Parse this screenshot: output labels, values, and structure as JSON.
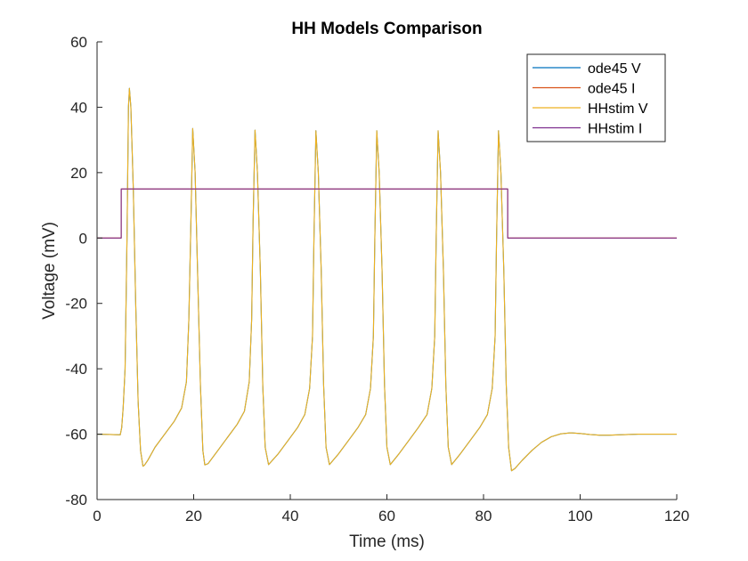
{
  "chart_data": {
    "type": "line",
    "title": "HH Models Comparison",
    "xlabel": "Time (ms)",
    "ylabel": "Voltage (mV)",
    "xlim": [
      0,
      120
    ],
    "ylim": [
      -80,
      60
    ],
    "xticks": [
      0,
      20,
      40,
      60,
      80,
      100,
      120
    ],
    "yticks": [
      -80,
      -60,
      -40,
      -20,
      0,
      20,
      40,
      60
    ],
    "grid": false,
    "legend_position": "top-right",
    "series": [
      {
        "name": "ode45 V",
        "color": "#0072BD",
        "x": [
          0,
          4.8,
          5.1,
          5.4,
          5.8,
          6.2,
          6.5,
          6.7,
          7.0,
          7.5,
          8.0,
          8.5,
          9.0,
          9.5,
          9.8,
          10.5,
          12,
          14,
          16,
          17.5,
          18.5,
          19.0,
          19.5,
          19.8,
          20.3,
          20.8,
          21.4,
          21.9,
          22.3,
          23,
          25,
          27,
          29,
          30.5,
          31.5,
          32.0,
          32.3,
          32.7,
          33.2,
          33.8,
          34.3,
          34.8,
          35.5,
          37.5,
          39.5,
          41.5,
          43,
          44,
          44.6,
          44.9,
          45.3,
          45.8,
          46.4,
          46.9,
          47.4,
          48.1,
          50,
          52,
          54,
          55.6,
          56.6,
          57.2,
          57.5,
          57.9,
          58.4,
          59.0,
          59.5,
          60.0,
          60.7,
          62.5,
          64.5,
          66.5,
          68.3,
          69.3,
          69.9,
          70.2,
          70.6,
          71.1,
          71.7,
          72.2,
          72.7,
          73.4,
          75.2,
          77.2,
          79.2,
          80.8,
          81.8,
          82.4,
          82.7,
          83.1,
          83.6,
          84.2,
          84.7,
          85.2,
          85.8,
          86.5,
          88,
          90,
          92,
          94,
          96,
          98,
          100,
          102,
          104,
          106,
          108,
          110,
          112,
          115,
          120
        ],
        "y": [
          -60,
          -60.2,
          -58,
          -52,
          -40,
          0,
          40,
          45.8,
          40,
          15,
          -20,
          -50,
          -65,
          -69.8,
          -69.5,
          -68,
          -64,
          -60,
          -56,
          -52,
          -44,
          -25,
          10,
          33.5,
          20,
          -10,
          -45,
          -65,
          -69.4,
          -69,
          -65,
          -61,
          -57,
          -53,
          -44,
          -25,
          5,
          33,
          20,
          -10,
          -45,
          -64,
          -69.3,
          -66,
          -62,
          -58,
          -54,
          -46,
          -30,
          0,
          32.8,
          20,
          -10,
          -45,
          -64,
          -69.3,
          -66,
          -62,
          -58,
          -54,
          -46,
          -30,
          0,
          32.8,
          20,
          -10,
          -45,
          -64,
          -69.3,
          -66,
          -62,
          -58,
          -54,
          -46,
          -30,
          0,
          32.8,
          20,
          -10,
          -45,
          -64,
          -69.3,
          -66,
          -62,
          -58,
          -54,
          -46,
          -30,
          0,
          32.8,
          20,
          -10,
          -45,
          -64,
          -71.2,
          -70.5,
          -68,
          -65,
          -62.5,
          -60.8,
          -59.9,
          -59.6,
          -59.8,
          -60.1,
          -60.3,
          -60.3,
          -60.2,
          -60.1,
          -60,
          -60,
          -60
        ]
      },
      {
        "name": "ode45 I",
        "color": "#D95319",
        "x": [
          0,
          5,
          5,
          85,
          85,
          120
        ],
        "y": [
          0,
          0,
          15,
          15,
          0,
          0
        ]
      },
      {
        "name": "HHstim V",
        "color": "#EDB120",
        "x": [
          0,
          4.8,
          5.1,
          5.4,
          5.8,
          6.2,
          6.5,
          6.7,
          7.0,
          7.5,
          8.0,
          8.5,
          9.0,
          9.5,
          9.8,
          10.5,
          12,
          14,
          16,
          17.5,
          18.5,
          19.0,
          19.5,
          19.8,
          20.3,
          20.8,
          21.4,
          21.9,
          22.3,
          23,
          25,
          27,
          29,
          30.5,
          31.5,
          32.0,
          32.3,
          32.7,
          33.2,
          33.8,
          34.3,
          34.8,
          35.5,
          37.5,
          39.5,
          41.5,
          43,
          44,
          44.6,
          44.9,
          45.3,
          45.8,
          46.4,
          46.9,
          47.4,
          48.1,
          50,
          52,
          54,
          55.6,
          56.6,
          57.2,
          57.5,
          57.9,
          58.4,
          59.0,
          59.5,
          60.0,
          60.7,
          62.5,
          64.5,
          66.5,
          68.3,
          69.3,
          69.9,
          70.2,
          70.6,
          71.1,
          71.7,
          72.2,
          72.7,
          73.4,
          75.2,
          77.2,
          79.2,
          80.8,
          81.8,
          82.4,
          82.7,
          83.1,
          83.6,
          84.2,
          84.7,
          85.2,
          85.8,
          86.5,
          88,
          90,
          92,
          94,
          96,
          98,
          100,
          102,
          104,
          106,
          108,
          110,
          112,
          115,
          120
        ],
        "y": [
          -60,
          -60.2,
          -58,
          -52,
          -40,
          0,
          40,
          45.8,
          40,
          15,
          -20,
          -50,
          -65,
          -69.8,
          -69.5,
          -68,
          -64,
          -60,
          -56,
          -52,
          -44,
          -25,
          10,
          33.5,
          20,
          -10,
          -45,
          -65,
          -69.4,
          -69,
          -65,
          -61,
          -57,
          -53,
          -44,
          -25,
          5,
          33,
          20,
          -10,
          -45,
          -64,
          -69.3,
          -66,
          -62,
          -58,
          -54,
          -46,
          -30,
          0,
          32.8,
          20,
          -10,
          -45,
          -64,
          -69.3,
          -66,
          -62,
          -58,
          -54,
          -46,
          -30,
          0,
          32.8,
          20,
          -10,
          -45,
          -64,
          -69.3,
          -66,
          -62,
          -58,
          -54,
          -46,
          -30,
          0,
          32.8,
          20,
          -10,
          -45,
          -64,
          -69.3,
          -66,
          -62,
          -58,
          -54,
          -46,
          -30,
          0,
          32.8,
          20,
          -10,
          -45,
          -64,
          -71.2,
          -70.5,
          -68,
          -65,
          -62.5,
          -60.8,
          -59.9,
          -59.6,
          -59.8,
          -60.1,
          -60.3,
          -60.3,
          -60.2,
          -60.1,
          -60,
          -60,
          -60
        ]
      },
      {
        "name": "HHstim I",
        "color": "#7E2F8E",
        "x": [
          0,
          5,
          5,
          85,
          85,
          120
        ],
        "y": [
          0,
          0,
          15,
          15,
          0,
          0
        ]
      }
    ]
  }
}
